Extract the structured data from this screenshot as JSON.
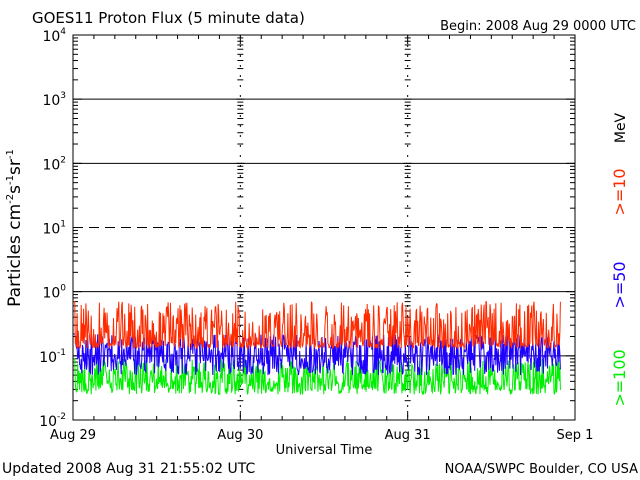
{
  "chart_data": {
    "type": "line",
    "title": "GOES11 Proton Flux (5 minute data)",
    "begin_label": "Begin: 2008 Aug 29 0000 UTC",
    "xlabel": "Universal Time",
    "ylabel": "Particles cm⁻²s⁻¹sr⁻¹",
    "ylabel_parts": [
      "Particles cm",
      "-2",
      "s",
      "-1",
      "sr",
      "-1"
    ],
    "yscale": "log",
    "ylim": [
      0.01,
      10000
    ],
    "y_ticks": [
      {
        "base": "10",
        "exp": "-2",
        "value": 0.01
      },
      {
        "base": "10",
        "exp": "-1",
        "value": 0.1
      },
      {
        "base": "10",
        "exp": "0",
        "value": 1
      },
      {
        "base": "10",
        "exp": "1",
        "value": 10
      },
      {
        "base": "10",
        "exp": "2",
        "value": 100
      },
      {
        "base": "10",
        "exp": "3",
        "value": 1000
      },
      {
        "base": "10",
        "exp": "4",
        "value": 10000
      }
    ],
    "x_ticks": [
      "Aug 29",
      "Aug 30",
      "Aug 31",
      "Sep 1"
    ],
    "xlim_days": [
      0,
      3
    ],
    "data_end_day": 2.913,
    "unit_label": "MeV",
    "threshold_lines": [
      {
        "value": 1000,
        "style": "solid"
      },
      {
        "value": 100,
        "style": "solid"
      },
      {
        "value": 10,
        "style": "dashed"
      },
      {
        "value": 1,
        "style": "solid"
      },
      {
        "value": 0.1,
        "style": "solid"
      }
    ],
    "series": [
      {
        "name": ">=10",
        "color": "#ff2a00",
        "baseline": 0.16,
        "low": 0.13,
        "high": 0.7,
        "spike_prob": 0.55
      },
      {
        "name": ">=50",
        "color": "#1e00ff",
        "baseline": 0.1,
        "low": 0.05,
        "high": 0.22,
        "spike_prob": 0.5
      },
      {
        "name": ">=100",
        "color": "#00ee00",
        "baseline": 0.04,
        "low": 0.025,
        "high": 0.09,
        "spike_prob": 0.5
      }
    ]
  },
  "footer": {
    "updated": "Updated 2008 Aug 31 21:55:02 UTC",
    "credit": "NOAA/SWPC Boulder, CO USA"
  }
}
